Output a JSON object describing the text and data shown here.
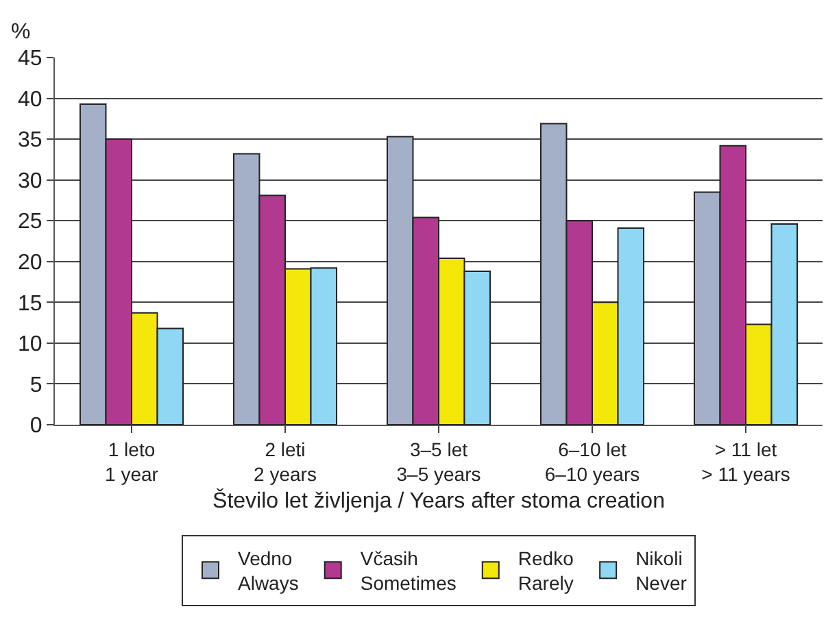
{
  "chart_data": {
    "type": "bar",
    "ylabel": "%",
    "xlabel": "Število let življenja / Years after stoma creation",
    "categories": [
      "1 leto\n1 year",
      "2 leti\n2 years",
      "3–5 let\n3–5 years",
      "6–10 let\n6–10 years",
      "> 11 let\n> 11 years"
    ],
    "series": [
      {
        "name": "Vedno\nAlways",
        "color": "#a4afc8",
        "values": [
          39.3,
          33.2,
          35.3,
          36.9,
          28.5
        ]
      },
      {
        "name": "Včasih\nSometimes",
        "color": "#b13a90",
        "values": [
          35.0,
          28.1,
          25.4,
          25.0,
          34.2
        ]
      },
      {
        "name": "Redko\nRarely",
        "color": "#f4e80a",
        "values": [
          13.7,
          19.1,
          20.4,
          15.0,
          12.3
        ]
      },
      {
        "name": "Nikoli\nNever",
        "color": "#8fd7f5",
        "values": [
          11.8,
          19.2,
          18.8,
          24.1,
          24.6
        ]
      }
    ],
    "ylim": [
      0,
      45
    ],
    "yticks": [
      0,
      5,
      10,
      15,
      20,
      25,
      30,
      35,
      40,
      45
    ],
    "grid": "y",
    "legend": "bottom"
  }
}
